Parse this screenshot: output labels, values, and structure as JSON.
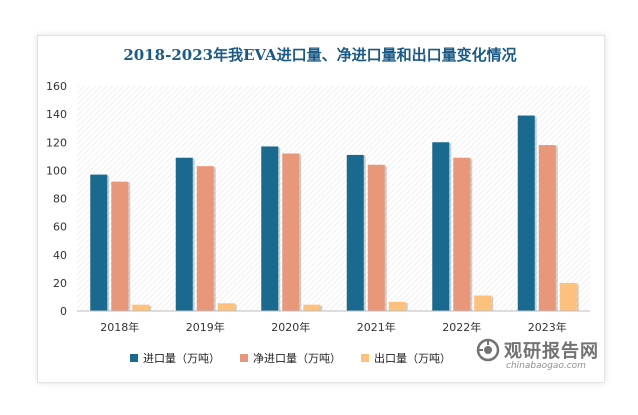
{
  "chart_data": {
    "type": "bar",
    "title": "2018-2023年我EVA进口量、净进口量和出口量变化情况",
    "categories": [
      "2018年",
      "2019年",
      "2020年",
      "2021年",
      "2022年",
      "2023年"
    ],
    "series": [
      {
        "name": "进口量（万吨）",
        "color": "#1a6a8f",
        "values": [
          97,
          109,
          117,
          111,
          120,
          139
        ]
      },
      {
        "name": "净进口量（万吨）",
        "color": "#e8977a",
        "values": [
          92,
          103,
          112,
          104,
          109,
          118
        ]
      },
      {
        "name": "出口量（万吨）",
        "color": "#fcc27d",
        "values": [
          4.5,
          5.5,
          4.5,
          6.5,
          11,
          20
        ]
      }
    ],
    "yticks": [
      "0",
      "20",
      "40",
      "60",
      "80",
      "100",
      "120",
      "140",
      "160"
    ],
    "ylim": [
      0,
      160
    ],
    "grid": true,
    "legend_position": "bottom",
    "xlabel": "",
    "ylabel": ""
  },
  "watermark": {
    "logo": "guanyan-logo-icon",
    "main_text": "观研报告网",
    "sub_text": "chinabaogao.com"
  }
}
